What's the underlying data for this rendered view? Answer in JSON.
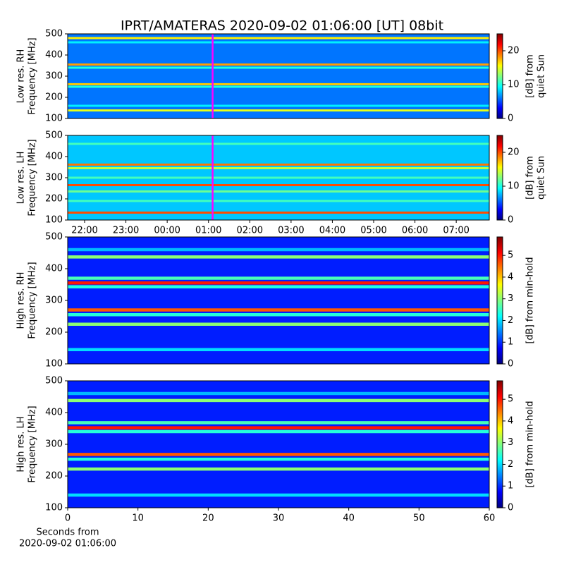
{
  "title": "IPRT/AMATERAS 2020-09-02 01:06:00 [UT]   08bit",
  "chart_data": [
    {
      "type": "heatmap",
      "ylabel": [
        "Low res. RH",
        "Frequency [MHz]"
      ],
      "xlim": [
        21.59,
        31.8
      ],
      "ylim": [
        100,
        500
      ],
      "yticks": [
        100,
        200,
        300,
        400,
        500
      ],
      "background": 6,
      "bands": [
        {
          "freq": 480,
          "level": 16
        },
        {
          "freq": 460,
          "level": 9
        },
        {
          "freq": 355,
          "level": 18
        },
        {
          "freq": 340,
          "level": 10
        },
        {
          "freq": 262,
          "level": 17
        },
        {
          "freq": 250,
          "level": 10
        },
        {
          "freq": 160,
          "level": 9
        },
        {
          "freq": 138,
          "level": 15
        }
      ],
      "marker": {
        "x": 25.1,
        "color": "#ff00ff"
      },
      "colorbar": {
        "label": [
          "[dB] from",
          "quiet Sun"
        ],
        "lim": [
          0,
          25
        ],
        "ticks": [
          0,
          10,
          20
        ]
      }
    },
    {
      "type": "heatmap",
      "ylabel": [
        "Low res. LH",
        "Frequency [MHz]"
      ],
      "xlim": [
        21.59,
        31.8
      ],
      "ylim": [
        100,
        500
      ],
      "yticks": [
        100,
        200,
        300,
        400,
        500
      ],
      "xticks": [
        {
          "value": 22,
          "label": "22:00"
        },
        {
          "value": 23,
          "label": "23:00"
        },
        {
          "value": 24,
          "label": "00:00"
        },
        {
          "value": 25,
          "label": "01:00"
        },
        {
          "value": 26,
          "label": "02:00"
        },
        {
          "value": 27,
          "label": "03:00"
        },
        {
          "value": 28,
          "label": "04:00"
        },
        {
          "value": 29,
          "label": "05:00"
        },
        {
          "value": 30,
          "label": "06:00"
        },
        {
          "value": 31,
          "label": "07:00"
        }
      ],
      "background": 8,
      "bands": [
        {
          "freq": 460,
          "level": 11
        },
        {
          "freq": 362,
          "level": 19
        },
        {
          "freq": 345,
          "level": 14
        },
        {
          "freq": 300,
          "level": 11
        },
        {
          "freq": 265,
          "level": 20
        },
        {
          "freq": 235,
          "level": 12
        },
        {
          "freq": 190,
          "level": 11
        },
        {
          "freq": 135,
          "level": 20
        }
      ],
      "marker": {
        "x": 25.1,
        "color": "#ff00ff"
      },
      "colorbar": {
        "label": [
          "[dB] from",
          "quiet Sun"
        ],
        "lim": [
          0,
          25
        ],
        "ticks": [
          0,
          10,
          20
        ]
      }
    },
    {
      "type": "heatmap",
      "ylabel": [
        "High res. RH",
        "Frequency [MHz]"
      ],
      "xlim": [
        0,
        60
      ],
      "ylim": [
        100,
        500
      ],
      "yticks": [
        100,
        200,
        300,
        400,
        500
      ],
      "background": 0.9,
      "bands": [
        {
          "freq": 460,
          "level": 1.8
        },
        {
          "freq": 437,
          "level": 3
        },
        {
          "freq": 370,
          "level": 2.6
        },
        {
          "freq": 355,
          "level": 5
        },
        {
          "freq": 343,
          "level": 2.4
        },
        {
          "freq": 270,
          "level": 4.6
        },
        {
          "freq": 255,
          "level": 2.4
        },
        {
          "freq": 225,
          "level": 3
        },
        {
          "freq": 145,
          "level": 2
        }
      ],
      "colorbar": {
        "label": [
          "[dB] from min-hold"
        ],
        "lim": [
          0,
          5.85
        ],
        "ticks": [
          0,
          1,
          2,
          3,
          4,
          5
        ]
      }
    },
    {
      "type": "heatmap",
      "ylabel": [
        "High res. LH",
        "Frequency [MHz]"
      ],
      "xlim": [
        0,
        60
      ],
      "ylim": [
        100,
        500
      ],
      "yticks": [
        100,
        200,
        300,
        400,
        500
      ],
      "xticks": [
        0,
        10,
        20,
        30,
        40,
        50,
        60
      ],
      "xlabel": [
        "Seconds from",
        "2020-09-02 01:06:00"
      ],
      "background": 0.9,
      "bands": [
        {
          "freq": 460,
          "level": 1.8
        },
        {
          "freq": 438,
          "level": 3
        },
        {
          "freq": 368,
          "level": 2.6
        },
        {
          "freq": 352,
          "level": 5
        },
        {
          "freq": 340,
          "level": 2.4
        },
        {
          "freq": 268,
          "level": 4.6
        },
        {
          "freq": 253,
          "level": 2.4
        },
        {
          "freq": 222,
          "level": 3
        },
        {
          "freq": 140,
          "level": 2
        }
      ],
      "colorbar": {
        "label": [
          "[dB] from min-hold"
        ],
        "lim": [
          0,
          5.85
        ],
        "ticks": [
          0,
          1,
          2,
          3,
          4,
          5
        ]
      }
    }
  ]
}
